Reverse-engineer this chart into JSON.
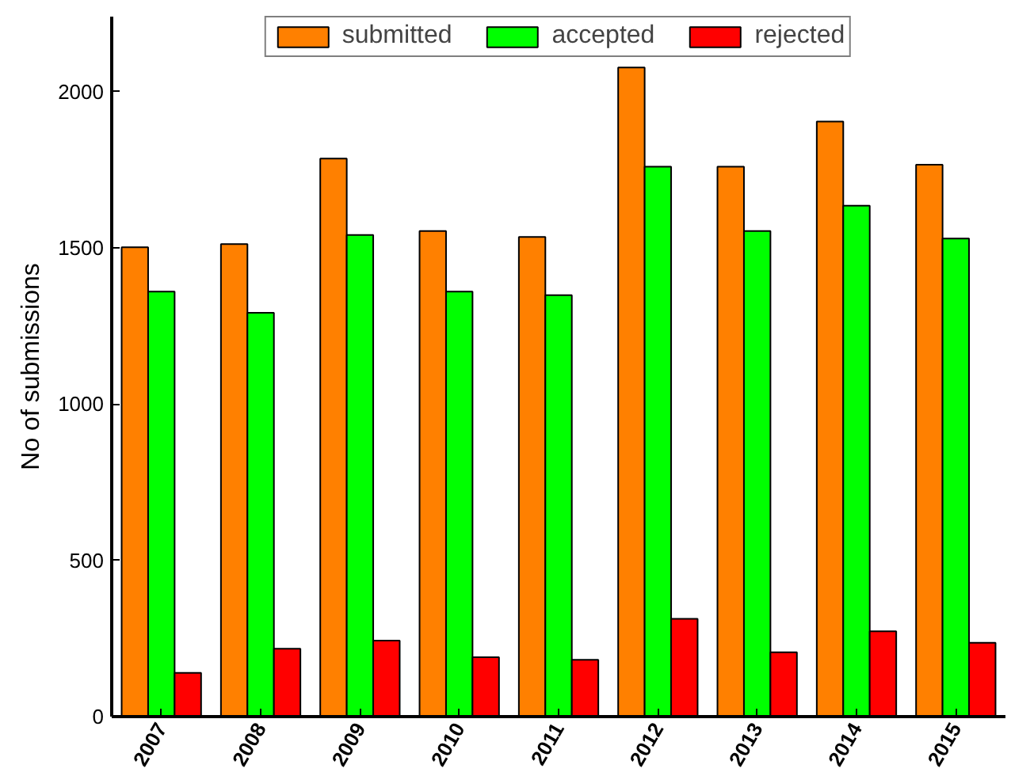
{
  "chart_data": {
    "type": "bar",
    "ylabel": "No of submissions",
    "categories": [
      "2007",
      "2008",
      "2009",
      "2010",
      "2011",
      "2012",
      "2013",
      "2014",
      "2015"
    ],
    "series": [
      {
        "name": "submitted",
        "color": "#ff8000",
        "values": [
          1502,
          1512,
          1786,
          1554,
          1535,
          2077,
          1760,
          1904,
          1766
        ]
      },
      {
        "name": "accepted",
        "color": "#00ff00",
        "values": [
          1360,
          1292,
          1541,
          1360,
          1349,
          1760,
          1554,
          1635,
          1530
        ]
      },
      {
        "name": "rejected",
        "color": "#ff0000",
        "values": [
          140,
          217,
          243,
          190,
          182,
          313,
          206,
          273,
          236
        ]
      }
    ],
    "ylim": [
      0,
      2240
    ],
    "yticks": [
      0,
      500,
      1000,
      1500,
      2000
    ],
    "grid": false,
    "legend": "top"
  }
}
